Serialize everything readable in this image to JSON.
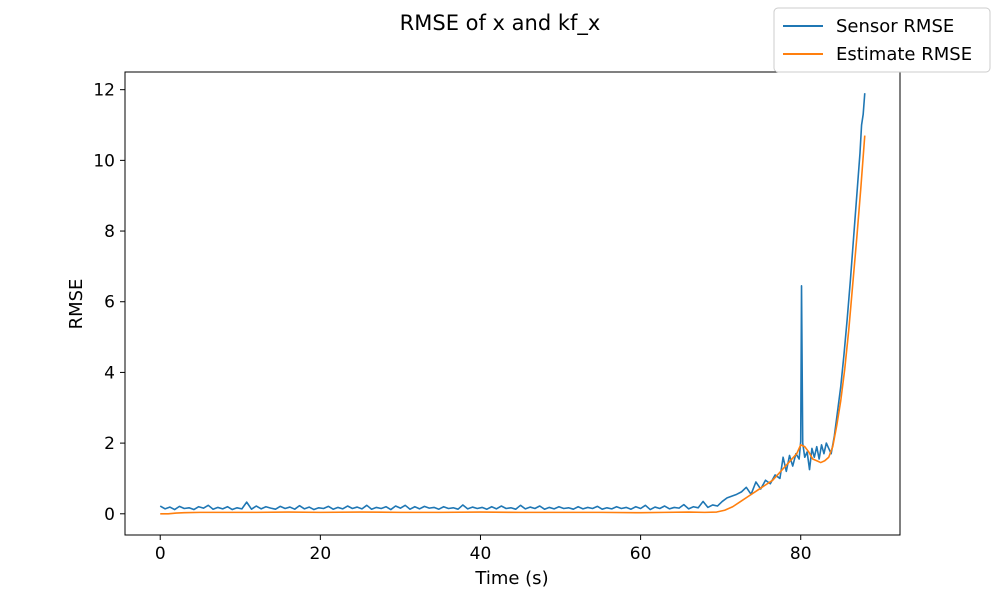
{
  "chart_data": {
    "type": "line",
    "title": "RMSE of x and kf_x",
    "xlabel": "Time (s)",
    "ylabel": "RMSE",
    "xlim": [
      -4.4,
      92.4
    ],
    "ylim": [
      -0.6,
      12.5
    ],
    "xticks": [
      0,
      20,
      40,
      60,
      80
    ],
    "yticks": [
      0,
      2,
      4,
      6,
      8,
      10,
      12
    ],
    "grid": false,
    "legend_position": "top-right (outside axes)",
    "series": [
      {
        "name": "Sensor RMSE",
        "color": "#1f77b4",
        "points": [
          [
            0.0,
            0.22
          ],
          [
            0.6,
            0.14
          ],
          [
            1.2,
            0.19
          ],
          [
            1.8,
            0.12
          ],
          [
            2.4,
            0.21
          ],
          [
            3.0,
            0.15
          ],
          [
            3.6,
            0.17
          ],
          [
            4.2,
            0.12
          ],
          [
            4.8,
            0.2
          ],
          [
            5.4,
            0.16
          ],
          [
            6.0,
            0.24
          ],
          [
            6.6,
            0.13
          ],
          [
            7.2,
            0.18
          ],
          [
            7.8,
            0.14
          ],
          [
            8.4,
            0.2
          ],
          [
            9.0,
            0.12
          ],
          [
            9.6,
            0.17
          ],
          [
            10.2,
            0.14
          ],
          [
            10.8,
            0.33
          ],
          [
            11.4,
            0.13
          ],
          [
            12.0,
            0.22
          ],
          [
            12.6,
            0.14
          ],
          [
            13.2,
            0.2
          ],
          [
            13.8,
            0.16
          ],
          [
            14.4,
            0.13
          ],
          [
            15.0,
            0.21
          ],
          [
            15.6,
            0.15
          ],
          [
            16.2,
            0.19
          ],
          [
            16.8,
            0.13
          ],
          [
            17.4,
            0.23
          ],
          [
            18.0,
            0.14
          ],
          [
            18.6,
            0.19
          ],
          [
            19.2,
            0.12
          ],
          [
            19.8,
            0.17
          ],
          [
            20.4,
            0.15
          ],
          [
            21.0,
            0.21
          ],
          [
            21.6,
            0.13
          ],
          [
            22.2,
            0.18
          ],
          [
            22.8,
            0.14
          ],
          [
            23.4,
            0.22
          ],
          [
            24.0,
            0.15
          ],
          [
            24.6,
            0.19
          ],
          [
            25.2,
            0.14
          ],
          [
            25.8,
            0.24
          ],
          [
            26.4,
            0.13
          ],
          [
            27.0,
            0.18
          ],
          [
            27.6,
            0.15
          ],
          [
            28.2,
            0.2
          ],
          [
            28.8,
            0.12
          ],
          [
            29.4,
            0.22
          ],
          [
            30.0,
            0.16
          ],
          [
            30.6,
            0.24
          ],
          [
            31.2,
            0.13
          ],
          [
            31.8,
            0.2
          ],
          [
            32.4,
            0.14
          ],
          [
            33.0,
            0.21
          ],
          [
            33.6,
            0.16
          ],
          [
            34.2,
            0.18
          ],
          [
            34.8,
            0.13
          ],
          [
            35.4,
            0.2
          ],
          [
            36.0,
            0.15
          ],
          [
            36.6,
            0.17
          ],
          [
            37.2,
            0.13
          ],
          [
            37.8,
            0.25
          ],
          [
            38.4,
            0.14
          ],
          [
            39.0,
            0.19
          ],
          [
            39.6,
            0.15
          ],
          [
            40.2,
            0.18
          ],
          [
            40.8,
            0.13
          ],
          [
            41.4,
            0.2
          ],
          [
            42.0,
            0.14
          ],
          [
            42.6,
            0.22
          ],
          [
            43.2,
            0.15
          ],
          [
            43.8,
            0.17
          ],
          [
            44.4,
            0.13
          ],
          [
            45.0,
            0.24
          ],
          [
            45.6,
            0.14
          ],
          [
            46.2,
            0.19
          ],
          [
            46.8,
            0.15
          ],
          [
            47.4,
            0.22
          ],
          [
            48.0,
            0.13
          ],
          [
            48.6,
            0.18
          ],
          [
            49.2,
            0.14
          ],
          [
            49.8,
            0.2
          ],
          [
            50.4,
            0.15
          ],
          [
            51.0,
            0.17
          ],
          [
            51.6,
            0.13
          ],
          [
            52.2,
            0.2
          ],
          [
            52.8,
            0.14
          ],
          [
            53.4,
            0.18
          ],
          [
            54.0,
            0.15
          ],
          [
            54.6,
            0.21
          ],
          [
            55.2,
            0.13
          ],
          [
            55.8,
            0.17
          ],
          [
            56.4,
            0.14
          ],
          [
            57.0,
            0.2
          ],
          [
            57.6,
            0.15
          ],
          [
            58.2,
            0.18
          ],
          [
            58.8,
            0.13
          ],
          [
            59.4,
            0.2
          ],
          [
            60.0,
            0.15
          ],
          [
            60.6,
            0.24
          ],
          [
            61.2,
            0.12
          ],
          [
            61.8,
            0.19
          ],
          [
            62.4,
            0.15
          ],
          [
            63.0,
            0.22
          ],
          [
            63.6,
            0.14
          ],
          [
            64.2,
            0.18
          ],
          [
            64.8,
            0.16
          ],
          [
            65.4,
            0.26
          ],
          [
            66.0,
            0.14
          ],
          [
            66.6,
            0.2
          ],
          [
            67.2,
            0.17
          ],
          [
            67.8,
            0.35
          ],
          [
            68.4,
            0.18
          ],
          [
            69.0,
            0.25
          ],
          [
            69.6,
            0.22
          ],
          [
            70.2,
            0.35
          ],
          [
            70.8,
            0.45
          ],
          [
            71.4,
            0.5
          ],
          [
            72.0,
            0.55
          ],
          [
            72.6,
            0.62
          ],
          [
            73.2,
            0.75
          ],
          [
            73.8,
            0.55
          ],
          [
            74.4,
            0.9
          ],
          [
            75.0,
            0.7
          ],
          [
            75.6,
            0.95
          ],
          [
            76.2,
            0.85
          ],
          [
            76.8,
            1.1
          ],
          [
            77.4,
            1.0
          ],
          [
            77.8,
            1.6
          ],
          [
            78.2,
            1.2
          ],
          [
            78.6,
            1.65
          ],
          [
            79.0,
            1.35
          ],
          [
            79.4,
            1.7
          ],
          [
            79.8,
            1.55
          ],
          [
            80.0,
            2.05
          ],
          [
            80.1,
            6.45
          ],
          [
            80.25,
            2.0
          ],
          [
            80.5,
            1.6
          ],
          [
            80.8,
            1.75
          ],
          [
            81.1,
            1.25
          ],
          [
            81.4,
            1.85
          ],
          [
            81.7,
            1.6
          ],
          [
            82.0,
            1.9
          ],
          [
            82.3,
            1.55
          ],
          [
            82.6,
            1.95
          ],
          [
            82.9,
            1.7
          ],
          [
            83.2,
            2.0
          ],
          [
            83.5,
            1.85
          ],
          [
            83.8,
            1.7
          ],
          [
            84.2,
            2.2
          ],
          [
            84.6,
            2.9
          ],
          [
            85.0,
            3.6
          ],
          [
            85.4,
            4.5
          ],
          [
            85.8,
            5.5
          ],
          [
            86.2,
            6.6
          ],
          [
            86.6,
            7.8
          ],
          [
            87.0,
            9.0
          ],
          [
            87.4,
            10.2
          ],
          [
            87.6,
            11.0
          ],
          [
            87.8,
            11.3
          ],
          [
            88.0,
            11.9
          ]
        ]
      },
      {
        "name": "Estimate RMSE",
        "color": "#ff7f0e",
        "points": [
          [
            0.0,
            0.0
          ],
          [
            1.0,
            0.0
          ],
          [
            2.0,
            0.02
          ],
          [
            3.0,
            0.03
          ],
          [
            5.0,
            0.04
          ],
          [
            8.0,
            0.04
          ],
          [
            12.0,
            0.04
          ],
          [
            16.0,
            0.05
          ],
          [
            20.0,
            0.04
          ],
          [
            25.0,
            0.05
          ],
          [
            30.0,
            0.04
          ],
          [
            35.0,
            0.04
          ],
          [
            40.0,
            0.05
          ],
          [
            45.0,
            0.04
          ],
          [
            50.0,
            0.04
          ],
          [
            55.0,
            0.04
          ],
          [
            60.0,
            0.03
          ],
          [
            63.0,
            0.04
          ],
          [
            66.0,
            0.05
          ],
          [
            68.0,
            0.04
          ],
          [
            69.5,
            0.05
          ],
          [
            70.5,
            0.1
          ],
          [
            71.5,
            0.2
          ],
          [
            72.5,
            0.35
          ],
          [
            73.5,
            0.5
          ],
          [
            74.5,
            0.65
          ],
          [
            75.5,
            0.8
          ],
          [
            76.5,
            0.95
          ],
          [
            77.5,
            1.2
          ],
          [
            78.5,
            1.45
          ],
          [
            79.5,
            1.7
          ],
          [
            80.0,
            1.95
          ],
          [
            80.5,
            1.9
          ],
          [
            81.0,
            1.75
          ],
          [
            81.5,
            1.55
          ],
          [
            82.0,
            1.5
          ],
          [
            82.5,
            1.45
          ],
          [
            83.0,
            1.5
          ],
          [
            83.5,
            1.6
          ],
          [
            84.0,
            1.9
          ],
          [
            84.5,
            2.5
          ],
          [
            85.0,
            3.2
          ],
          [
            85.5,
            4.1
          ],
          [
            86.0,
            5.2
          ],
          [
            86.5,
            6.5
          ],
          [
            87.0,
            7.8
          ],
          [
            87.5,
            9.2
          ],
          [
            88.0,
            10.7
          ]
        ]
      }
    ]
  }
}
